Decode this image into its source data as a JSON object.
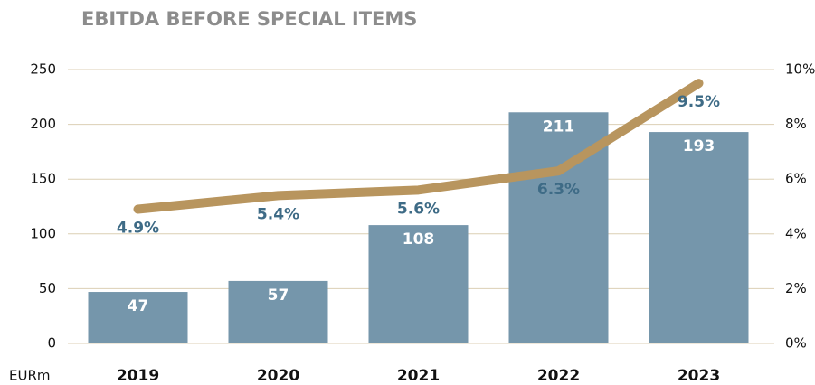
{
  "chart_data": {
    "type": "bar",
    "title": "EBITDA BEFORE SPECIAL ITEMS",
    "y_label": "EURm",
    "categories": [
      "2019",
      "2020",
      "2021",
      "2022",
      "2023"
    ],
    "series": [
      {
        "type": "bar",
        "color": "#7596ab",
        "values": [
          47,
          57,
          108,
          211,
          193
        ]
      },
      {
        "type": "line",
        "axis": "y2",
        "color": "#b8955e",
        "values": [
          4.9,
          5.4,
          5.6,
          6.3,
          9.5
        ],
        "value_labels": [
          "4.9%",
          "5.4%",
          "5.6%",
          "6.3%",
          "9.5%"
        ]
      }
    ],
    "ylim": [
      0,
      250
    ],
    "yticks": [
      0,
      50,
      100,
      150,
      200,
      250
    ],
    "y2lim": [
      0,
      10
    ],
    "y2ticks": [
      {
        "value": 0,
        "label": "0%"
      },
      {
        "value": 2,
        "label": "2%"
      },
      {
        "value": 4,
        "label": "4%"
      },
      {
        "value": 6,
        "label": "6%"
      },
      {
        "value": 8,
        "label": "8%"
      },
      {
        "value": 10,
        "label": "10%"
      }
    ],
    "grid": true
  }
}
